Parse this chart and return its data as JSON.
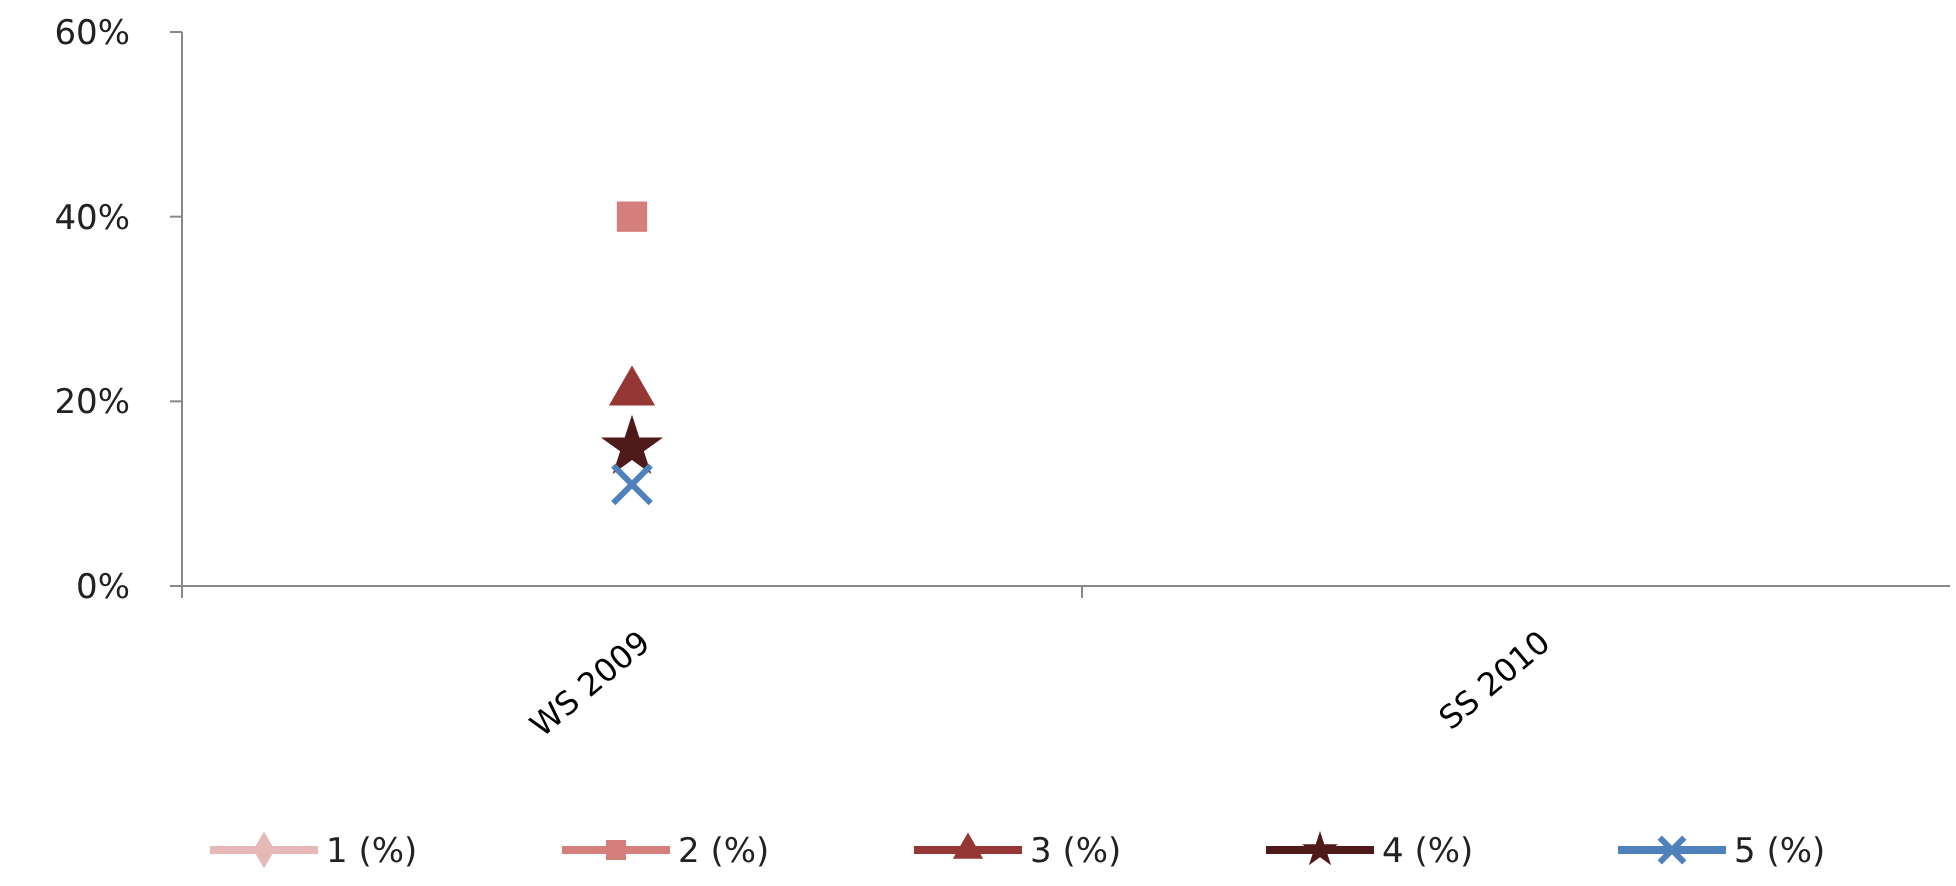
{
  "chart_data": {
    "type": "line",
    "categories": [
      "WS 2009",
      "SS 2010"
    ],
    "series": [
      {
        "name": "1 (%)",
        "color": "#e6b9b8",
        "marker": "diamond",
        "values": [
          null,
          null
        ]
      },
      {
        "name": "2 (%)",
        "color": "#d47f7c",
        "marker": "square",
        "values": [
          40,
          null
        ]
      },
      {
        "name": "3 (%)",
        "color": "#953735",
        "marker": "triangle",
        "values": [
          21,
          null
        ]
      },
      {
        "name": "4 (%)",
        "color": "#4f1a1a",
        "marker": "star",
        "values": [
          15,
          null
        ]
      },
      {
        "name": "5 (%)",
        "color": "#4f81bd",
        "marker": "cross",
        "values": [
          11,
          null
        ]
      }
    ],
    "ylim": [
      0,
      60
    ],
    "yticks": [
      {
        "value": 0,
        "label": "0%"
      },
      {
        "value": 20,
        "label": "20%"
      },
      {
        "value": 40,
        "label": "40%"
      },
      {
        "value": 60,
        "label": "60%"
      }
    ],
    "grid": false,
    "legend": "bottom"
  }
}
